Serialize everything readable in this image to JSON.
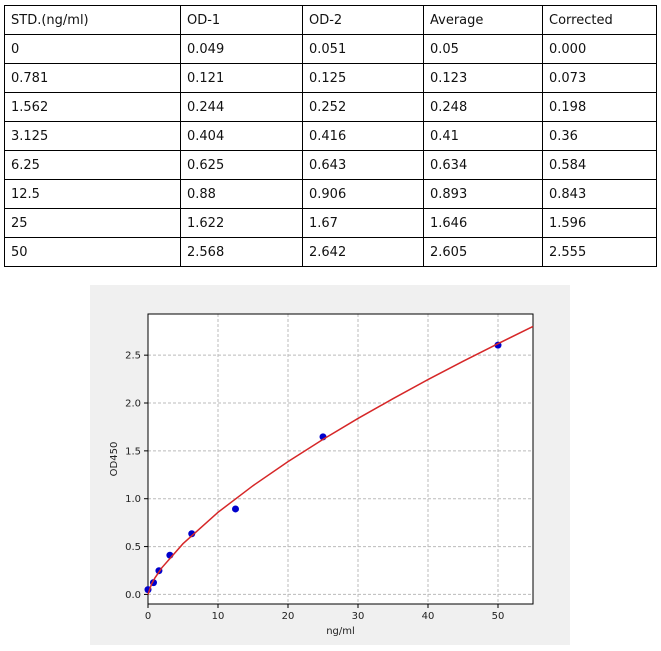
{
  "table": {
    "header": [
      "STD.(ng/ml)",
      "OD-1",
      "OD-2",
      "Average",
      "Corrected"
    ],
    "rows": [
      [
        "0",
        "0.049",
        "0.051",
        "0.05",
        "0.000"
      ],
      [
        "0.781",
        "0.121",
        "0.125",
        "0.123",
        "0.073"
      ],
      [
        "1.562",
        "0.244",
        "0.252",
        "0.248",
        "0.198"
      ],
      [
        "3.125",
        "0.404",
        "0.416",
        "0.41",
        "0.36"
      ],
      [
        "6.25",
        "0.625",
        "0.643",
        "0.634",
        "0.584"
      ],
      [
        "12.5",
        "0.88",
        "0.906",
        "0.893",
        "0.843"
      ],
      [
        "25",
        "1.622",
        "1.67",
        "1.646",
        "1.596"
      ],
      [
        "50",
        "2.568",
        "2.642",
        "2.605",
        "2.555"
      ]
    ]
  },
  "chart_data": {
    "type": "scatter",
    "x_label": "ng/ml",
    "y_label": "OD450",
    "series": [
      {
        "kind": "points",
        "color": "#0000cc",
        "x": [
          0,
          0.781,
          1.562,
          3.125,
          6.25,
          12.5,
          25,
          50
        ],
        "values": [
          0.05,
          0.123,
          0.248,
          0.41,
          0.634,
          0.893,
          1.646,
          2.605
        ]
      },
      {
        "kind": "line",
        "color": "#d62728",
        "x": [
          0,
          0.5,
          1,
          2,
          5,
          10,
          15,
          20,
          25,
          30,
          35,
          40,
          45,
          50,
          55
        ],
        "values": [
          0,
          0.107,
          0.174,
          0.281,
          0.53,
          0.858,
          1.136,
          1.387,
          1.62,
          1.839,
          2.045,
          2.245,
          2.436,
          2.62,
          2.8
        ]
      }
    ],
    "xlim": [
      0,
      55
    ],
    "ylim": [
      -0.1,
      2.93
    ],
    "xticks": [
      0,
      10,
      20,
      30,
      40,
      50
    ],
    "yticks": [
      {
        "value": 0,
        "label": "0.0"
      },
      {
        "value": 0.5,
        "label": "0.5"
      },
      {
        "value": 1,
        "label": "1.0"
      },
      {
        "value": 1.5,
        "label": "1.5"
      },
      {
        "value": 2,
        "label": "2.0"
      },
      {
        "value": 2.5,
        "label": "2.5"
      }
    ],
    "grid": true
  }
}
